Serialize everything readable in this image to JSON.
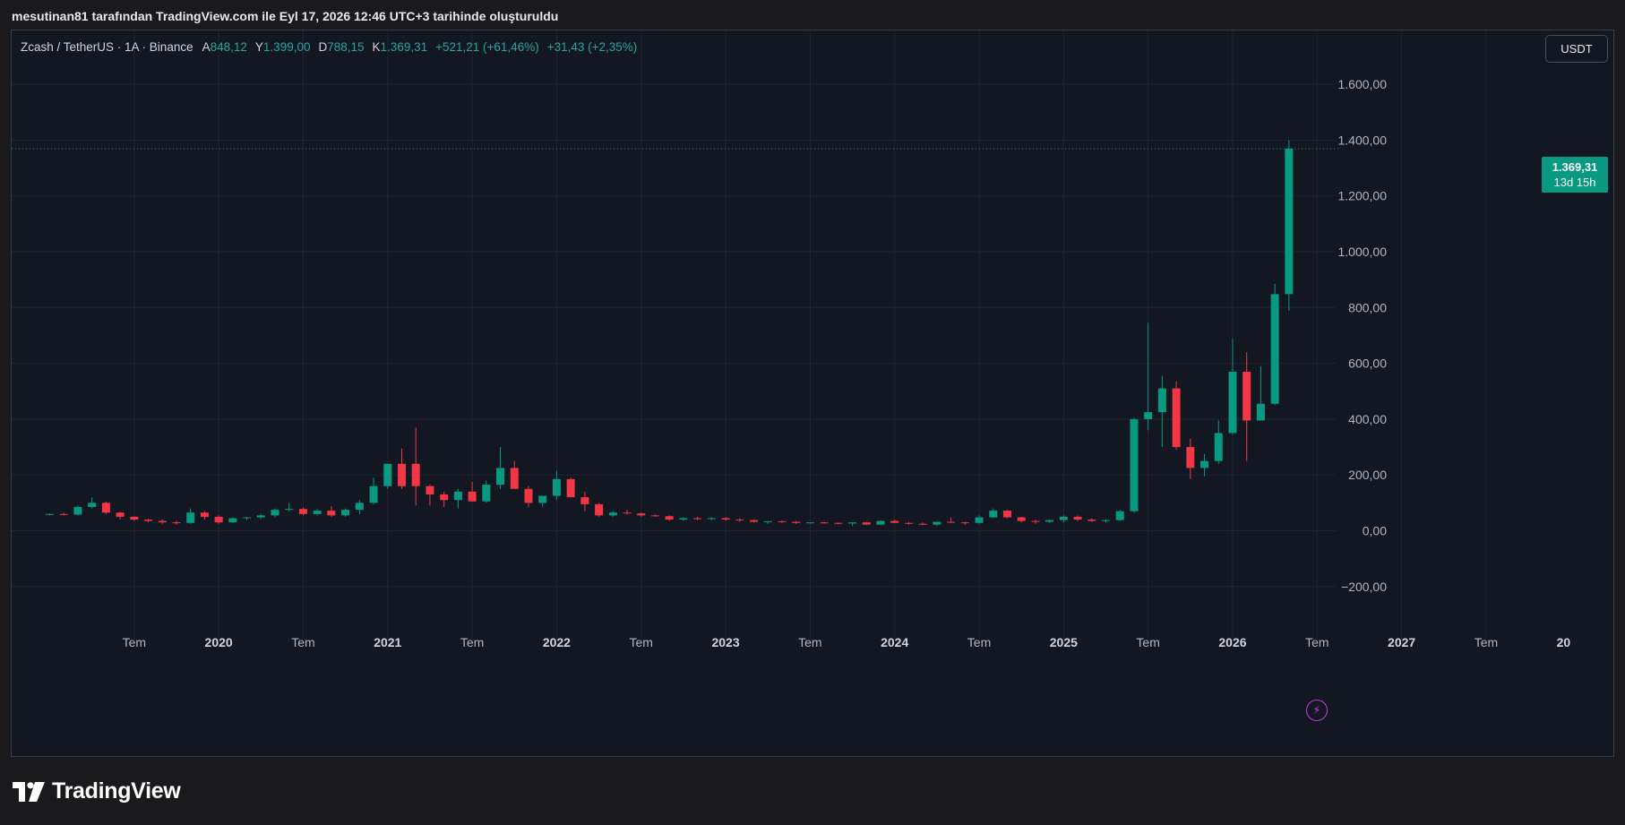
{
  "caption": "mesutinan81 tarafından TradingView.com ile Eyl 17, 2026 12:46 UTC+3 tarihinde oluşturuldu",
  "legend": {
    "symbol": "Zcash / TetherUS · 1A · Binance",
    "open_label": "A",
    "open": "848,12",
    "high_label": "Y",
    "high": "1.399,00",
    "low_label": "D",
    "low": "788,15",
    "close_label": "K",
    "close": "1.369,31",
    "change": "+521,21 (+61,46%)",
    "extra_change": "+31,43 (+2,35%)"
  },
  "currency": "USDT",
  "price_tag": {
    "price": "1.369,31",
    "countdown": "13d 15h"
  },
  "brand": "TradingView",
  "colors": {
    "up": "#089981",
    "down": "#f23645",
    "background": "#131722",
    "grid": "#1f2430",
    "axis_text": "#b2b5be"
  },
  "icons": {
    "bolt": "lightning-icon",
    "logo": "tradingview-logo-icon"
  },
  "chart_data": {
    "type": "candlestick",
    "title": "",
    "xlabel": "",
    "ylabel": "",
    "ylim": [
      -330,
      1740
    ],
    "y_ticks": [
      {
        "value": 1600,
        "label": "1.600,00"
      },
      {
        "value": 1400,
        "label": "1.400,00"
      },
      {
        "value": 1200,
        "label": "1.200,00"
      },
      {
        "value": 1000,
        "label": "1.000,00"
      },
      {
        "value": 800,
        "label": "800,00"
      },
      {
        "value": 600,
        "label": "600,00"
      },
      {
        "value": 400,
        "label": "400,00"
      },
      {
        "value": 200,
        "label": "200,00"
      },
      {
        "value": 0,
        "label": "0,00"
      },
      {
        "value": -200,
        "label": "−200,00"
      }
    ],
    "x_ticks": [
      {
        "index": 6,
        "label": "Tem",
        "bold": false
      },
      {
        "index": 12,
        "label": "2020",
        "bold": true
      },
      {
        "index": 18,
        "label": "Tem",
        "bold": false
      },
      {
        "index": 24,
        "label": "2021",
        "bold": true
      },
      {
        "index": 30,
        "label": "Tem",
        "bold": false
      },
      {
        "index": 36,
        "label": "2022",
        "bold": true
      },
      {
        "index": 42,
        "label": "Tem",
        "bold": false
      },
      {
        "index": 48,
        "label": "2023",
        "bold": true
      },
      {
        "index": 54,
        "label": "Tem",
        "bold": false
      },
      {
        "index": 60,
        "label": "2024",
        "bold": true
      },
      {
        "index": 66,
        "label": "Tem",
        "bold": false
      },
      {
        "index": 72,
        "label": "2025",
        "bold": true
      },
      {
        "index": 78,
        "label": "Tem",
        "bold": false
      },
      {
        "index": 84,
        "label": "2026",
        "bold": true
      },
      {
        "index": 90,
        "label": "Tem",
        "bold": false
      },
      {
        "index": 96,
        "label": "2027",
        "bold": true
      },
      {
        "index": 102,
        "label": "Tem",
        "bold": false
      },
      {
        "index": 107.5,
        "label": "20",
        "bold": true
      }
    ],
    "current_price": 1369.31,
    "candles": [
      [
        58,
        62,
        55,
        60
      ],
      [
        60,
        65,
        55,
        58
      ],
      [
        58,
        90,
        55,
        85
      ],
      [
        85,
        120,
        80,
        100
      ],
      [
        100,
        105,
        60,
        65
      ],
      [
        65,
        68,
        40,
        50
      ],
      [
        50,
        52,
        35,
        40
      ],
      [
        40,
        42,
        30,
        35
      ],
      [
        35,
        40,
        25,
        30
      ],
      [
        30,
        35,
        22,
        28
      ],
      [
        28,
        80,
        25,
        65
      ],
      [
        65,
        70,
        40,
        50
      ],
      [
        50,
        55,
        25,
        30
      ],
      [
        30,
        48,
        28,
        45
      ],
      [
        45,
        50,
        38,
        48
      ],
      [
        48,
        60,
        42,
        55
      ],
      [
        55,
        80,
        48,
        75
      ],
      [
        75,
        100,
        70,
        78
      ],
      [
        78,
        82,
        55,
        60
      ],
      [
        60,
        78,
        55,
        72
      ],
      [
        72,
        88,
        50,
        55
      ],
      [
        55,
        80,
        50,
        75
      ],
      [
        75,
        110,
        60,
        100
      ],
      [
        100,
        190,
        95,
        160
      ],
      [
        160,
        230,
        150,
        240
      ],
      [
        240,
        295,
        150,
        160
      ],
      [
        240,
        370,
        90,
        160
      ],
      [
        160,
        165,
        90,
        130
      ],
      [
        130,
        140,
        85,
        110
      ],
      [
        110,
        150,
        80,
        140
      ],
      [
        140,
        175,
        105,
        105
      ],
      [
        105,
        180,
        100,
        165
      ],
      [
        165,
        300,
        150,
        225
      ],
      [
        225,
        250,
        150,
        150
      ],
      [
        150,
        160,
        85,
        100
      ],
      [
        100,
        120,
        85,
        125
      ],
      [
        125,
        215,
        110,
        185
      ],
      [
        185,
        190,
        125,
        120
      ],
      [
        120,
        140,
        70,
        95
      ],
      [
        95,
        100,
        50,
        55
      ],
      [
        55,
        70,
        50,
        65
      ],
      [
        65,
        75,
        58,
        62
      ],
      [
        62,
        65,
        50,
        55
      ],
      [
        55,
        58,
        50,
        52
      ],
      [
        52,
        55,
        35,
        40
      ],
      [
        40,
        48,
        35,
        45
      ],
      [
        45,
        50,
        38,
        42
      ],
      [
        42,
        48,
        38,
        45
      ],
      [
        45,
        48,
        35,
        40
      ],
      [
        40,
        45,
        32,
        38
      ],
      [
        38,
        40,
        30,
        32
      ],
      [
        32,
        35,
        25,
        34
      ],
      [
        34,
        36,
        28,
        32
      ],
      [
        32,
        35,
        25,
        28
      ],
      [
        28,
        30,
        25,
        30
      ],
      [
        30,
        32,
        25,
        28
      ],
      [
        28,
        30,
        22,
        26
      ],
      [
        26,
        30,
        18,
        30
      ],
      [
        30,
        32,
        20,
        22
      ],
      [
        22,
        38,
        20,
        35
      ],
      [
        35,
        40,
        28,
        28
      ],
      [
        28,
        32,
        22,
        25
      ],
      [
        25,
        30,
        20,
        22
      ],
      [
        22,
        28,
        18,
        32
      ],
      [
        32,
        48,
        28,
        30
      ],
      [
        30,
        32,
        22,
        28
      ],
      [
        28,
        55,
        25,
        48
      ],
      [
        48,
        80,
        45,
        72
      ],
      [
        72,
        75,
        45,
        48
      ],
      [
        48,
        50,
        30,
        35
      ],
      [
        35,
        40,
        25,
        32
      ],
      [
        32,
        40,
        28,
        38
      ],
      [
        38,
        55,
        30,
        50
      ],
      [
        50,
        55,
        35,
        40
      ],
      [
        40,
        45,
        32,
        35
      ],
      [
        35,
        40,
        30,
        38
      ],
      [
        38,
        75,
        35,
        70
      ],
      [
        70,
        405,
        65,
        400
      ],
      [
        400,
        745,
        360,
        425
      ],
      [
        425,
        555,
        300,
        510
      ],
      [
        510,
        535,
        290,
        300
      ],
      [
        300,
        330,
        185,
        225
      ],
      [
        225,
        275,
        195,
        250
      ],
      [
        250,
        395,
        240,
        350
      ],
      [
        350,
        690,
        345,
        570
      ],
      [
        570,
        640,
        250,
        395
      ],
      [
        395,
        590,
        395,
        455
      ],
      [
        455,
        885,
        450,
        848.12
      ],
      [
        848.12,
        1399,
        788.15,
        1369.31
      ]
    ]
  }
}
